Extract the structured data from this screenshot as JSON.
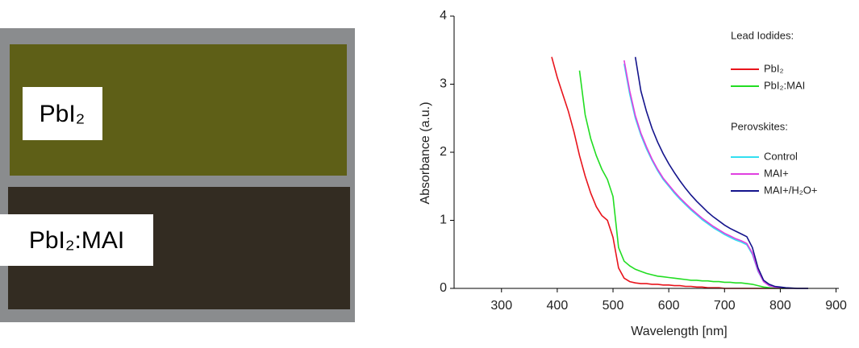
{
  "photo": {
    "labels": [
      "PbI₂",
      "PbI₂:MAI"
    ]
  },
  "chart_data": {
    "type": "line",
    "x_label": "Wavelength [nm]",
    "y_label": "Absorbance (a.u.)",
    "x": [
      380,
      390,
      400,
      410,
      420,
      430,
      440,
      450,
      460,
      470,
      480,
      490,
      500,
      510,
      520,
      530,
      540,
      550,
      560,
      570,
      580,
      590,
      600,
      610,
      620,
      630,
      640,
      650,
      660,
      670,
      680,
      690,
      700,
      710,
      720,
      730,
      740,
      750,
      760,
      770,
      780,
      790,
      800,
      810,
      820,
      830,
      840,
      850
    ],
    "legend_headings": [
      "Lead Iodides:",
      "Perovskites:"
    ],
    "series": [
      {
        "name": "PbI₂",
        "color": "#e8141c",
        "values": [
          null,
          3.4,
          3.1,
          2.85,
          2.6,
          2.3,
          1.95,
          1.65,
          1.4,
          1.2,
          1.07,
          1.0,
          0.75,
          0.3,
          0.15,
          0.1,
          0.08,
          0.07,
          0.07,
          0.06,
          0.06,
          0.05,
          0.05,
          0.04,
          0.04,
          0.03,
          0.03,
          0.02,
          0.02,
          0.01,
          0.01,
          0.01,
          0,
          0,
          0,
          0,
          0,
          0,
          0,
          0,
          0,
          0,
          0,
          0,
          0,
          0,
          0,
          0
        ]
      },
      {
        "name": "PbI₂:MAI",
        "color": "#22dd22",
        "values": [
          null,
          null,
          null,
          null,
          null,
          null,
          3.2,
          2.55,
          2.2,
          1.95,
          1.75,
          1.6,
          1.35,
          0.6,
          0.4,
          0.33,
          0.28,
          0.25,
          0.22,
          0.2,
          0.18,
          0.17,
          0.16,
          0.15,
          0.14,
          0.13,
          0.12,
          0.12,
          0.11,
          0.11,
          0.1,
          0.1,
          0.09,
          0.09,
          0.08,
          0.08,
          0.07,
          0.06,
          0.04,
          0.02,
          0.01,
          0,
          0,
          0,
          0,
          0,
          0,
          0
        ]
      },
      {
        "name": "Control",
        "color": "#33dff0",
        "values": [
          null,
          null,
          null,
          null,
          null,
          null,
          null,
          null,
          null,
          null,
          null,
          null,
          null,
          null,
          3.3,
          2.85,
          2.5,
          2.25,
          2.05,
          1.88,
          1.73,
          1.6,
          1.5,
          1.4,
          1.31,
          1.23,
          1.15,
          1.08,
          1.01,
          0.95,
          0.89,
          0.84,
          0.79,
          0.75,
          0.71,
          0.68,
          0.64,
          0.5,
          0.25,
          0.1,
          0.04,
          0.02,
          0.01,
          0,
          0,
          0,
          0,
          0
        ]
      },
      {
        "name": "MAI+",
        "color": "#e040e0",
        "values": [
          null,
          null,
          null,
          null,
          null,
          null,
          null,
          null,
          null,
          null,
          null,
          null,
          null,
          null,
          3.35,
          2.9,
          2.54,
          2.28,
          2.08,
          1.9,
          1.75,
          1.62,
          1.52,
          1.42,
          1.33,
          1.25,
          1.17,
          1.1,
          1.03,
          0.97,
          0.91,
          0.86,
          0.81,
          0.77,
          0.73,
          0.7,
          0.66,
          0.52,
          0.26,
          0.1,
          0.04,
          0.02,
          0.01,
          0,
          0,
          0,
          0,
          0
        ]
      },
      {
        "name": "MAI+/H₂O+",
        "color": "#14148c",
        "values": [
          null,
          null,
          null,
          null,
          null,
          null,
          null,
          null,
          null,
          null,
          null,
          null,
          null,
          null,
          null,
          null,
          3.4,
          2.9,
          2.6,
          2.35,
          2.15,
          1.98,
          1.83,
          1.7,
          1.58,
          1.47,
          1.37,
          1.28,
          1.2,
          1.12,
          1.05,
          0.99,
          0.93,
          0.88,
          0.84,
          0.8,
          0.76,
          0.6,
          0.3,
          0.12,
          0.06,
          0.03,
          0.02,
          0.01,
          0.005,
          0,
          0,
          0
        ]
      }
    ],
    "xlim": [
      215,
      905
    ],
    "xticks": [
      300,
      400,
      500,
      600,
      700,
      800,
      900
    ],
    "ylim": [
      0,
      4
    ],
    "yticks": [
      0,
      1,
      2,
      3,
      4
    ]
  }
}
